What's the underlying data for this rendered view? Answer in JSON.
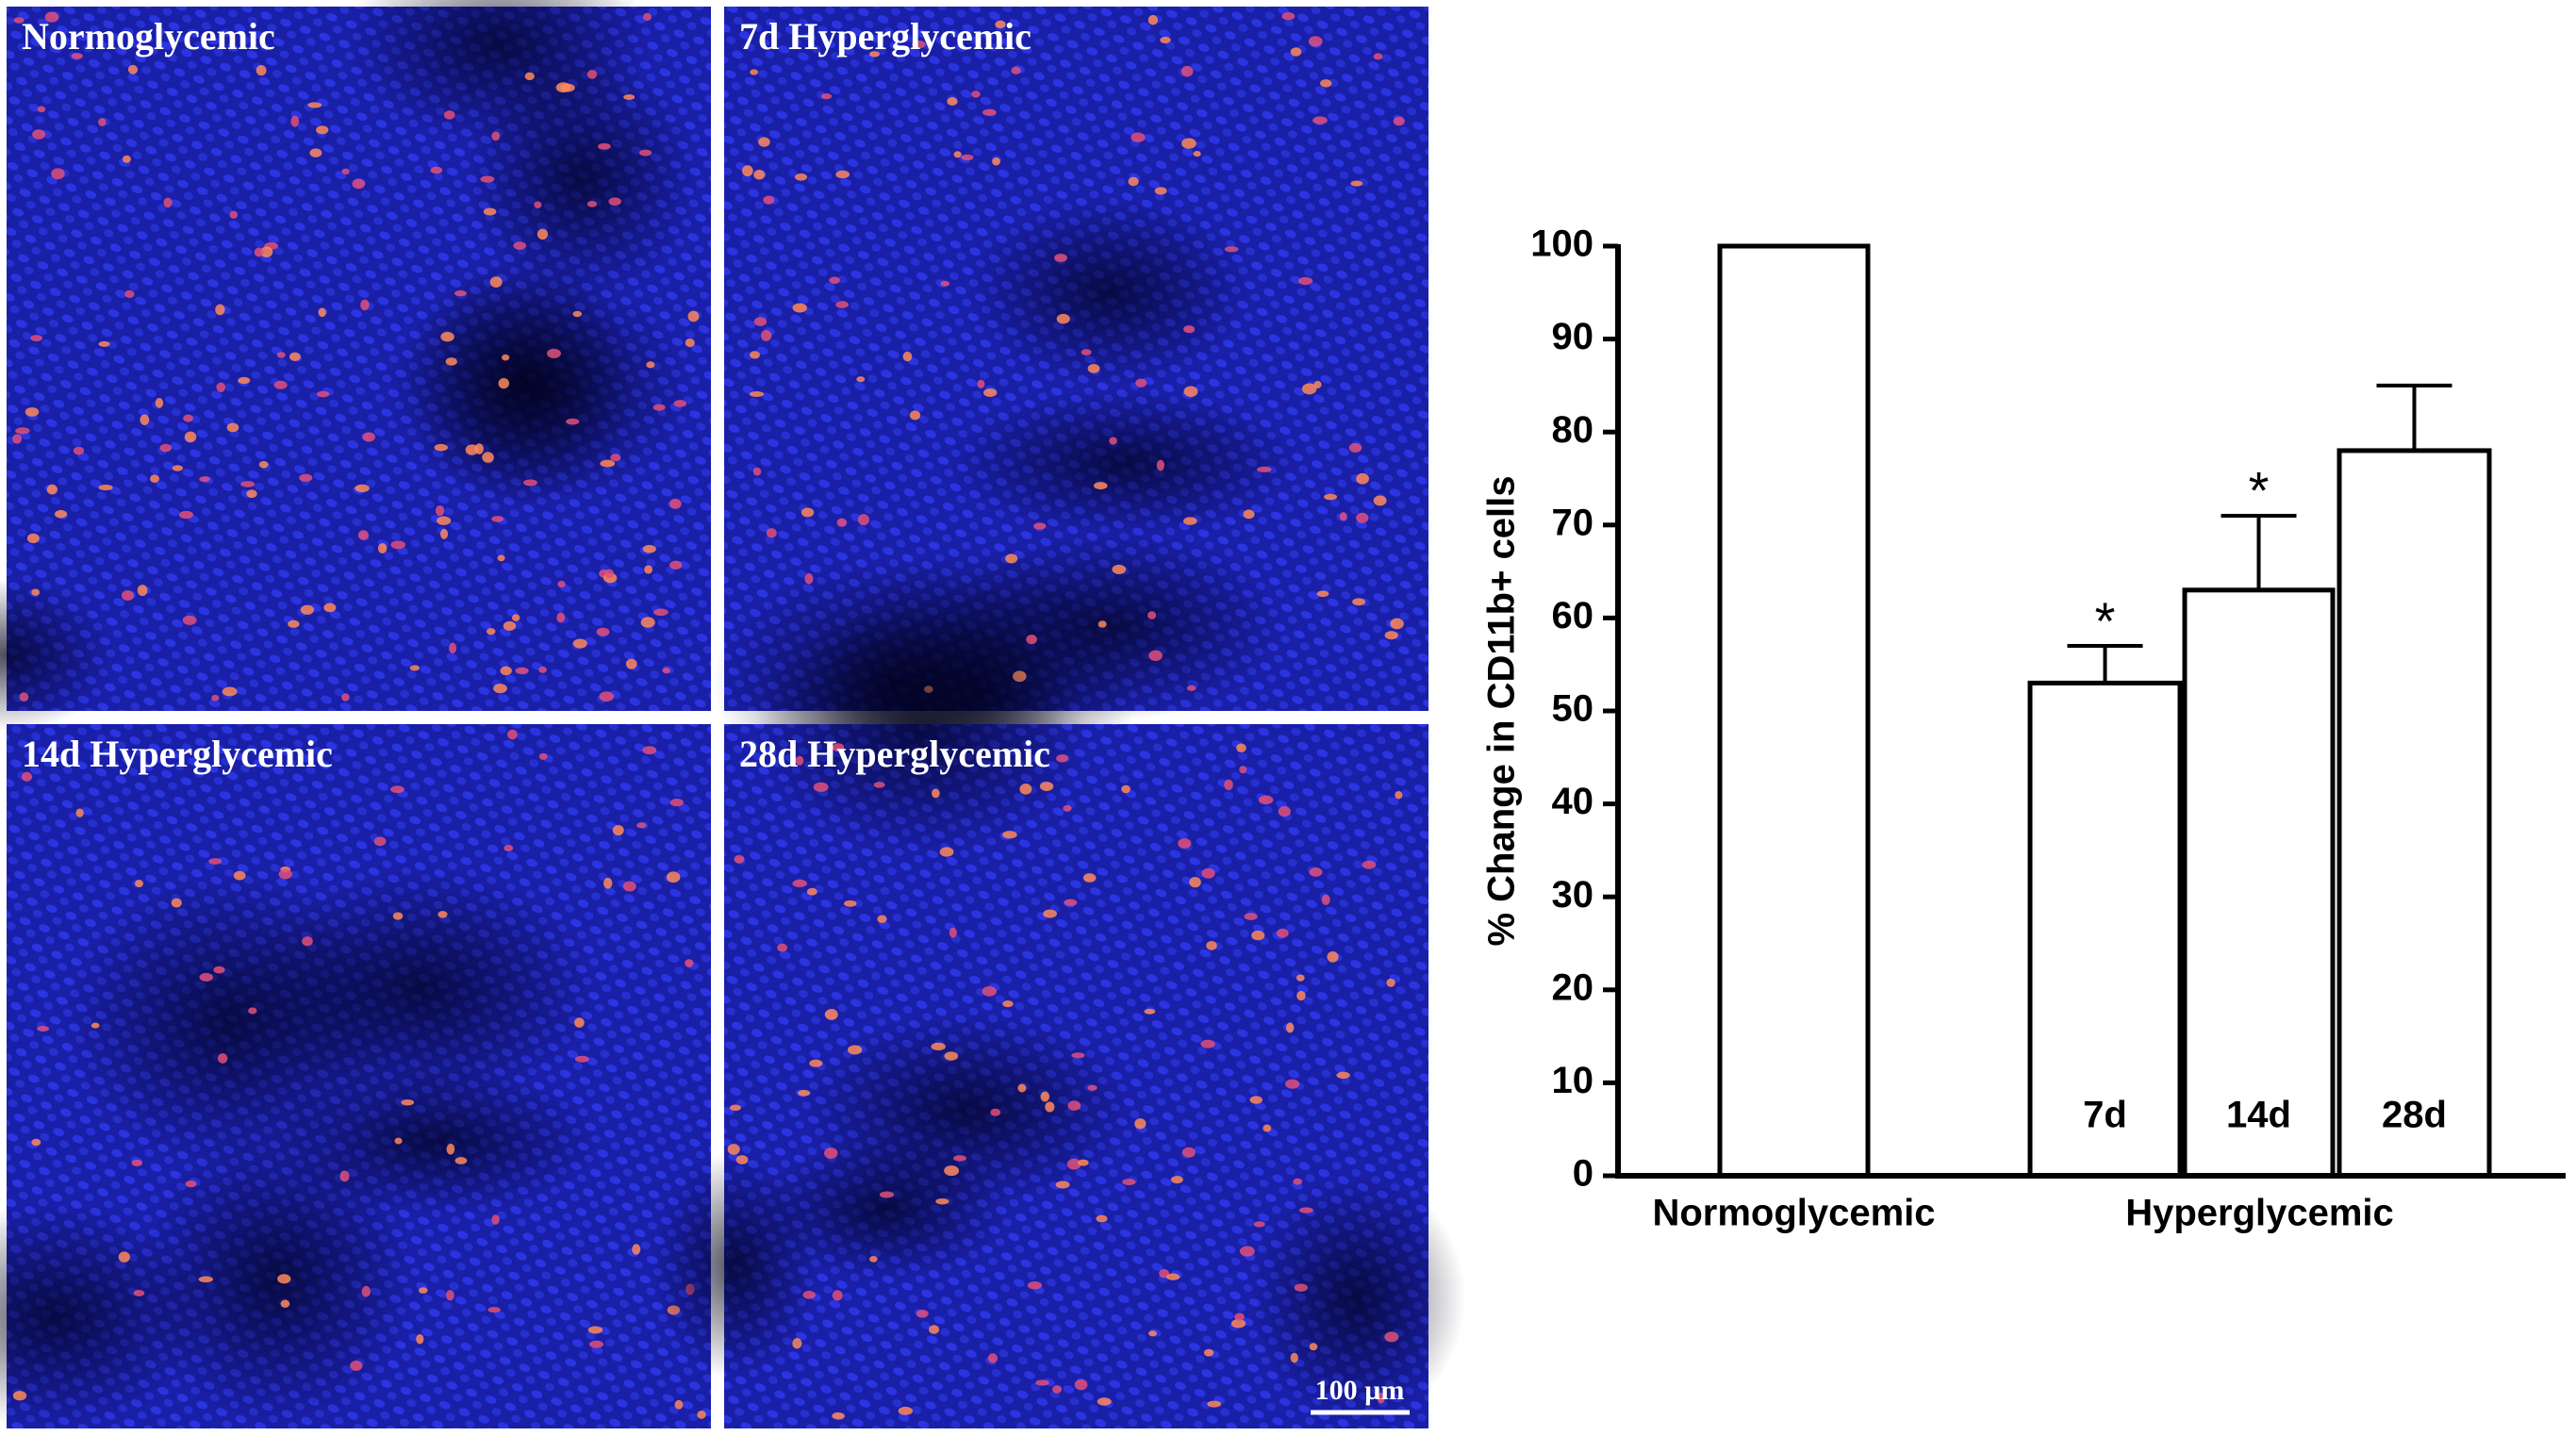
{
  "panels": [
    "Normoglycemic",
    "7d Hyperglycemic",
    "14d Hyperglycemic",
    "28d Hyperglycemic"
  ],
  "scale_bar": "100 µm",
  "chart_data": {
    "type": "bar",
    "y_label": "% Change in CD11b+ cells",
    "categories": [
      "Normoglycemic",
      "7d",
      "14d",
      "28d"
    ],
    "group_label": "Hyperglycemic",
    "values": [
      100,
      53,
      63,
      78
    ],
    "errors": [
      null,
      4,
      8,
      7
    ],
    "annotations": [
      null,
      "*",
      "*",
      null
    ],
    "color": "#ffffff",
    "ylim": [
      0,
      100
    ],
    "yticks": [
      0,
      10,
      20,
      30,
      40,
      50,
      60,
      70,
      80,
      90,
      100
    ]
  }
}
